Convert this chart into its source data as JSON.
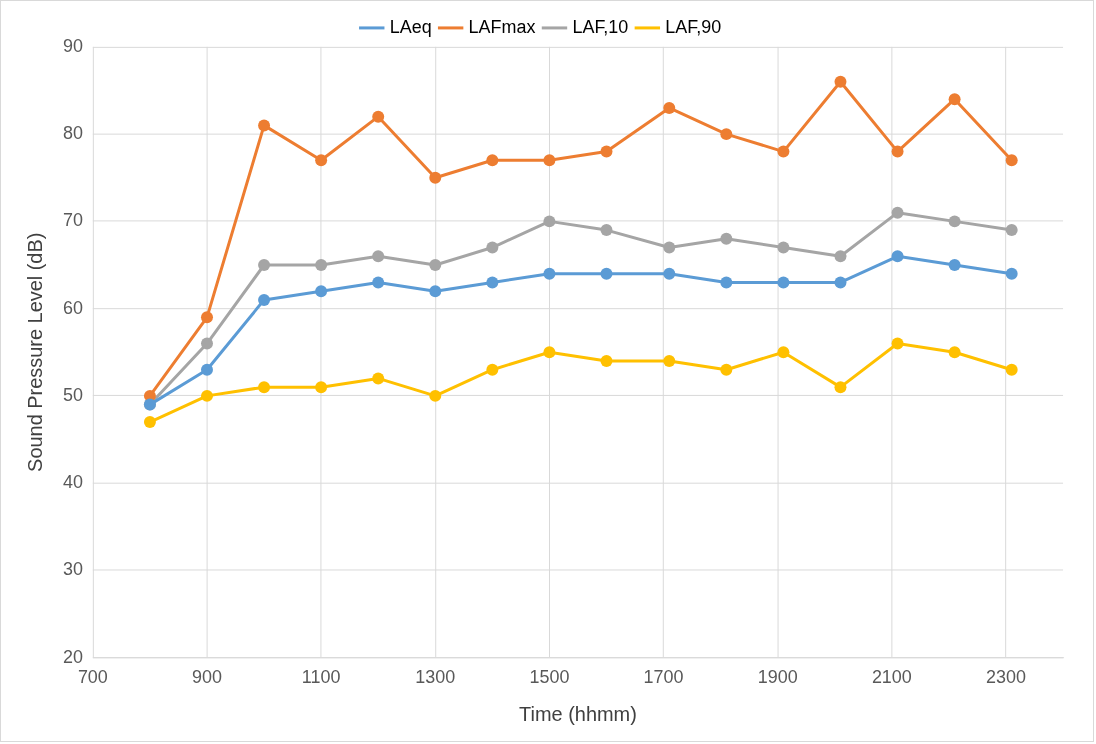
{
  "chart_data": {
    "type": "line",
    "xlabel": "Time (hhmm)",
    "ylabel": "Sound Pressure Level (dB)",
    "x": [
      800,
      900,
      1000,
      1100,
      1200,
      1300,
      1400,
      1500,
      1600,
      1710,
      1810,
      1910,
      2010,
      2110,
      2210,
      2310
    ],
    "series": [
      {
        "name": "LAeq",
        "color": "#5b9bd5",
        "values": [
          49,
          53,
          61,
          62,
          63,
          62,
          63,
          64,
          64,
          64,
          63,
          63,
          63,
          66,
          65,
          64
        ]
      },
      {
        "name": "LAFmax",
        "color": "#ed7d31",
        "values": [
          50,
          59,
          81,
          77,
          82,
          75,
          77,
          77,
          78,
          83,
          80,
          78,
          86,
          78,
          84,
          77
        ]
      },
      {
        "name": "LAF,10",
        "color": "#a5a5a5",
        "values": [
          49,
          56,
          65,
          65,
          66,
          65,
          67,
          70,
          69,
          67,
          68,
          67,
          66,
          71,
          70,
          69
        ]
      },
      {
        "name": "LAF,90",
        "color": "#ffc000",
        "values": [
          47,
          50,
          51,
          51,
          52,
          50,
          53,
          55,
          54,
          54,
          53,
          55,
          51,
          56,
          55,
          53
        ]
      }
    ],
    "xlim": [
      700,
      2400
    ],
    "xticks": [
      700,
      900,
      1100,
      1300,
      1500,
      1700,
      1900,
      2100,
      2300
    ],
    "ylim": [
      20,
      90
    ],
    "yticks": [
      20,
      30,
      40,
      50,
      60,
      70,
      80,
      90
    ],
    "grid": true,
    "legend": "top",
    "marker": "circle",
    "line_style": "solid"
  }
}
